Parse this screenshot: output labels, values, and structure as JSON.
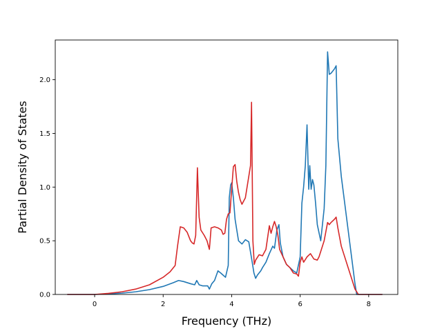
{
  "chart_data": {
    "type": "line",
    "xlabel": "Frequency (THz)",
    "ylabel": "Partial Density of States",
    "xlim": [
      -1.15,
      8.85
    ],
    "ylim": [
      0.0,
      2.37
    ],
    "xticks": [
      0,
      2,
      4,
      6,
      8
    ],
    "yticks": [
      0.0,
      0.5,
      1.0,
      1.5,
      2.0
    ],
    "xtick_labels": [
      "0",
      "2",
      "4",
      "6",
      "8"
    ],
    "ytick_labels": [
      "0.0",
      "0.5",
      "1.0",
      "1.5",
      "2.0"
    ],
    "grid": false,
    "series": [
      {
        "color": "#1f77b4",
        "x": [
          -0.8,
          0.0,
          0.4,
          0.8,
          1.2,
          1.6,
          2.0,
          2.3,
          2.45,
          2.6,
          2.8,
          2.92,
          2.98,
          3.05,
          3.15,
          3.3,
          3.35,
          3.42,
          3.5,
          3.6,
          3.68,
          3.75,
          3.82,
          3.9,
          3.93,
          3.97,
          4.0,
          4.05,
          4.1,
          4.15,
          4.2,
          4.3,
          4.4,
          4.5,
          4.6,
          4.65,
          4.7,
          4.75,
          4.8,
          4.85,
          4.9,
          5.0,
          5.1,
          5.2,
          5.25,
          5.32,
          5.38,
          5.42,
          5.5,
          5.6,
          5.7,
          5.8,
          5.9,
          6.0,
          6.05,
          6.1,
          6.15,
          6.2,
          6.25,
          6.28,
          6.32,
          6.36,
          6.4,
          6.45,
          6.5,
          6.6,
          6.7,
          6.75,
          6.8,
          6.85,
          6.9,
          7.0,
          7.05,
          7.1,
          7.2,
          7.3,
          7.4,
          7.5,
          7.6,
          7.65,
          7.7,
          8.4
        ],
        "y": [
          0.0,
          0.0,
          0.005,
          0.012,
          0.025,
          0.045,
          0.075,
          0.11,
          0.13,
          0.12,
          0.1,
          0.09,
          0.13,
          0.09,
          0.08,
          0.08,
          0.05,
          0.1,
          0.13,
          0.22,
          0.2,
          0.18,
          0.16,
          0.27,
          0.9,
          1.02,
          1.04,
          0.9,
          0.7,
          0.6,
          0.5,
          0.47,
          0.51,
          0.49,
          0.3,
          0.2,
          0.15,
          0.18,
          0.2,
          0.22,
          0.25,
          0.3,
          0.38,
          0.45,
          0.43,
          0.6,
          0.65,
          0.48,
          0.35,
          0.28,
          0.25,
          0.22,
          0.2,
          0.35,
          0.85,
          1.0,
          1.2,
          1.58,
          0.98,
          1.2,
          0.98,
          1.07,
          1.02,
          0.85,
          0.65,
          0.5,
          0.8,
          1.2,
          2.26,
          2.05,
          2.06,
          2.1,
          2.13,
          1.45,
          1.1,
          0.85,
          0.6,
          0.35,
          0.1,
          0.0,
          0.0,
          0.0
        ]
      },
      {
        "color": "#d62728",
        "x": [
          -0.8,
          0.0,
          0.4,
          0.8,
          1.2,
          1.6,
          2.0,
          2.2,
          2.35,
          2.42,
          2.5,
          2.6,
          2.7,
          2.8,
          2.85,
          2.9,
          2.95,
          3.0,
          3.05,
          3.1,
          3.2,
          3.28,
          3.35,
          3.4,
          3.5,
          3.6,
          3.7,
          3.75,
          3.8,
          3.85,
          3.9,
          3.95,
          4.0,
          4.05,
          4.1,
          4.15,
          4.2,
          4.25,
          4.3,
          4.4,
          4.5,
          4.55,
          4.58,
          4.62,
          4.66,
          4.7,
          4.8,
          4.9,
          5.0,
          5.1,
          5.15,
          5.2,
          5.25,
          5.3,
          5.35,
          5.4,
          5.5,
          5.6,
          5.7,
          5.8,
          5.9,
          5.95,
          6.0,
          6.05,
          6.1,
          6.2,
          6.3,
          6.4,
          6.5,
          6.55,
          6.6,
          6.7,
          6.8,
          6.85,
          6.9,
          7.0,
          7.05,
          7.1,
          7.2,
          7.3,
          7.4,
          7.5,
          7.6,
          7.7,
          8.4
        ],
        "y": [
          0.0,
          0.0,
          0.01,
          0.025,
          0.05,
          0.09,
          0.16,
          0.21,
          0.27,
          0.45,
          0.63,
          0.62,
          0.58,
          0.5,
          0.48,
          0.47,
          0.55,
          1.18,
          0.72,
          0.6,
          0.55,
          0.5,
          0.42,
          0.62,
          0.63,
          0.62,
          0.6,
          0.56,
          0.57,
          0.7,
          0.75,
          0.76,
          0.98,
          1.19,
          1.21,
          1.05,
          0.95,
          0.88,
          0.84,
          0.9,
          1.1,
          1.2,
          1.79,
          0.5,
          0.28,
          0.32,
          0.37,
          0.36,
          0.42,
          0.64,
          0.57,
          0.63,
          0.68,
          0.63,
          0.55,
          0.42,
          0.35,
          0.28,
          0.25,
          0.2,
          0.19,
          0.17,
          0.3,
          0.35,
          0.3,
          0.35,
          0.38,
          0.33,
          0.32,
          0.35,
          0.4,
          0.5,
          0.67,
          0.65,
          0.67,
          0.7,
          0.72,
          0.62,
          0.45,
          0.35,
          0.25,
          0.15,
          0.05,
          0.0,
          0.0
        ]
      }
    ]
  }
}
